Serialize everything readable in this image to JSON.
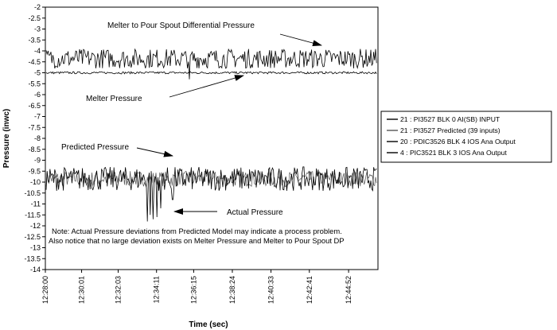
{
  "chart_data": {
    "type": "line",
    "title": "",
    "xlabel": "Time (sec)",
    "ylabel": "Pressure (inwc)",
    "ylim": [
      -14,
      -2
    ],
    "y_ticks": [
      -2,
      -2.5,
      -3,
      -3.5,
      -4,
      -4.5,
      -5,
      -5.5,
      -6,
      -6.5,
      -7,
      -7.5,
      -8,
      -8.5,
      -9,
      -9.5,
      -10,
      -10.5,
      -11,
      -11.5,
      -12,
      -12.5,
      -13,
      -13.5,
      -14
    ],
    "y_tick_labels": [
      "-2",
      "-2.5",
      "-3",
      "-3.5",
      "-4",
      "-4.5",
      "-5",
      "-5.5",
      "-6",
      "-6.5",
      "-7",
      "-7.5",
      "-8",
      "-8.5",
      "-9",
      "-9.5",
      "-10",
      "-10.5",
      "-11",
      "-11.5",
      "-12",
      "-12.5",
      "-13",
      "-13.5",
      "-14"
    ],
    "xlim": [
      "12:28:00",
      "12:46:30"
    ],
    "x_tick_labels": [
      "12:28:00",
      "12:30:01",
      "12:32:03",
      "12:34:11",
      "12:36:15",
      "12:38:24",
      "12:40:33",
      "12:42:41",
      "12:44:52"
    ],
    "grid": false,
    "legend_position": "right",
    "series": [
      {
        "name": "21 : PI3527 BLK 0 AI(SB) INPUT",
        "color": "#000000",
        "typical_range": [
          -10.4,
          -9.3
        ],
        "spikes": [
          [
            "12:33:40",
            -11.8
          ],
          [
            "12:33:50",
            -11.5
          ],
          [
            "12:34:00",
            -11.7
          ],
          [
            "12:34:11",
            -11.6
          ],
          [
            "12:34:25",
            -11.2
          ],
          [
            "12:35:05",
            -10.8
          ]
        ]
      },
      {
        "name": "21 : PI3527 Predicted (39 inputs)",
        "color": "#555555",
        "typical_range": [
          -10.2,
          -9.5
        ]
      },
      {
        "name": "20 : PDIC3526 BLK 4 IOS Ana Output",
        "color": "#000000",
        "typical_range": [
          -4.8,
          -3.9
        ],
        "spikes": [
          [
            "12:36:00",
            -3.3
          ],
          [
            "12:36:00",
            -5.3
          ]
        ]
      },
      {
        "name": "4 : PIC3521 BLK 3 IOS Ana Output",
        "color": "#000000",
        "typical_range": [
          -5.05,
          -4.95
        ]
      }
    ],
    "annotations": [
      {
        "text": "Melter to Pour Spout Differential Pressure"
      },
      {
        "text": "Melter Pressure"
      },
      {
        "text": "Predicted  Pressure"
      },
      {
        "text": "Actual Pressure"
      },
      {
        "text": "Note: Actual Pressure deviations from Predicted Model may indicate a process problem."
      },
      {
        "text": "Also notice that no large deviation exists on Melter Pressure and Melter to Pour Spout DP"
      }
    ]
  }
}
